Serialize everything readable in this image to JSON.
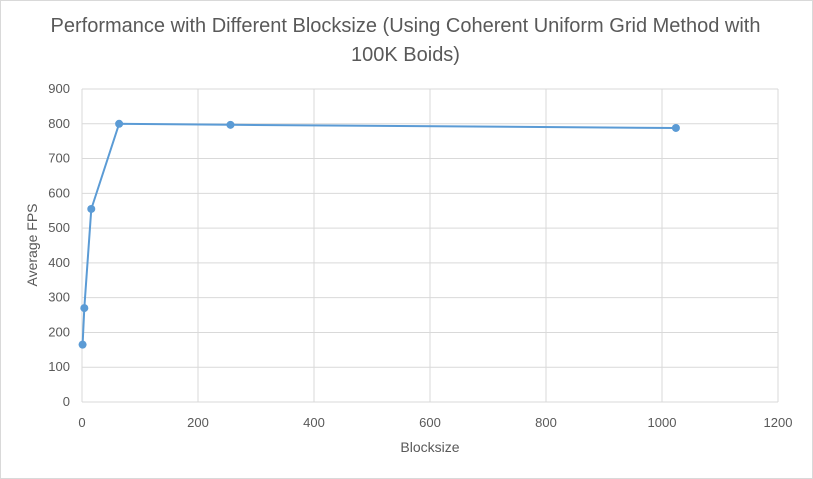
{
  "chart_data": {
    "type": "scatter",
    "title": "Performance with Different Blocksize (Using Coherent Uniform Grid Method with 100K Boids)",
    "xlabel": "Blocksize",
    "ylabel": "Average FPS",
    "xlim": [
      0,
      1200
    ],
    "ylim": [
      0,
      900
    ],
    "xticks": [
      0,
      200,
      400,
      600,
      800,
      1000,
      1200
    ],
    "yticks": [
      0,
      100,
      200,
      300,
      400,
      500,
      600,
      700,
      800,
      900
    ],
    "grid": true,
    "legend": "none",
    "series": [
      {
        "color": "#5b9bd5",
        "points": [
          {
            "x": 1,
            "y": 165
          },
          {
            "x": 4,
            "y": 270
          },
          {
            "x": 16,
            "y": 555
          },
          {
            "x": 64,
            "y": 800
          },
          {
            "x": 256,
            "y": 797
          },
          {
            "x": 1024,
            "y": 788
          }
        ]
      }
    ]
  },
  "colors": {
    "series": "#5b9bd5",
    "grid": "#d9d9d9",
    "text": "#595959"
  }
}
